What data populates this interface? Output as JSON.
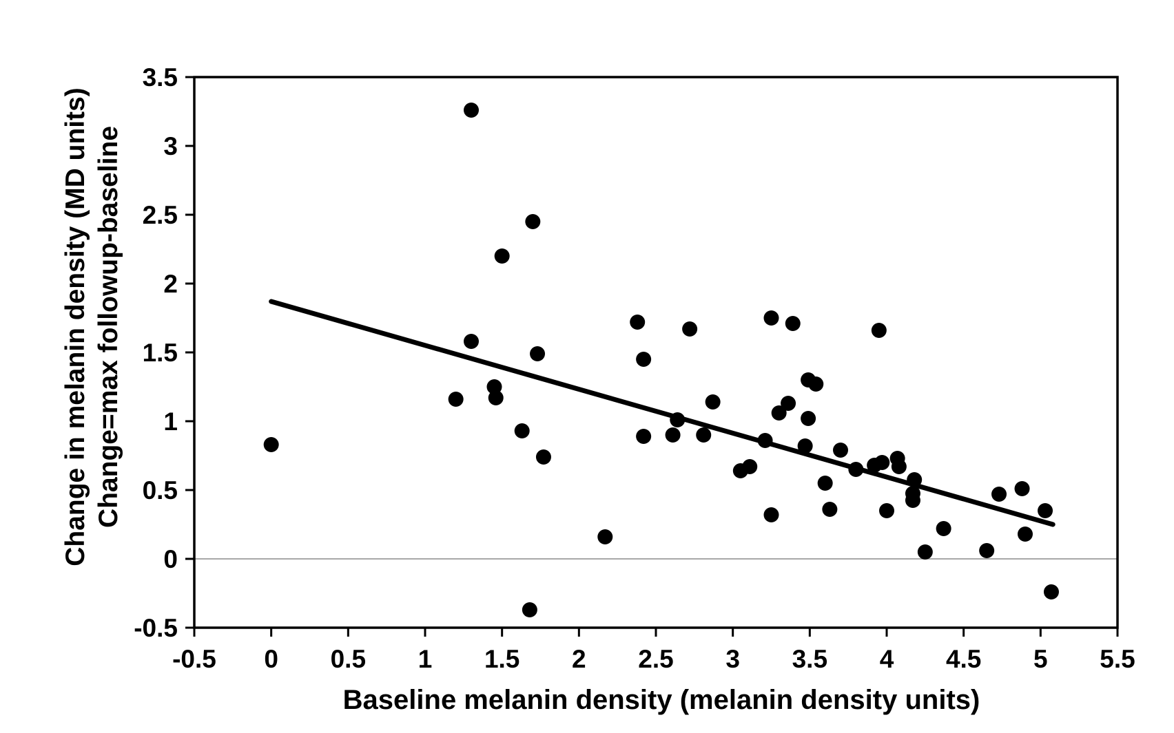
{
  "figure": {
    "background": "#ffffff"
  },
  "chart_data": {
    "type": "scatter",
    "title": "",
    "xlabel": "Baseline melanin density (melanin density units)",
    "ylabel_line1": "Change in melanin density (MD units)",
    "ylabel_line2": "Change=max followup-baseline",
    "xlim": [
      -0.5,
      5.5
    ],
    "ylim": [
      -0.5,
      3.5
    ],
    "xticks": [
      -0.5,
      0,
      0.5,
      1,
      1.5,
      2,
      2.5,
      3,
      3.5,
      4,
      4.5,
      5,
      5.5
    ],
    "xtick_labels": [
      "-0.5",
      "0",
      "0.5",
      "1",
      "1.5",
      "2",
      "2.5",
      "3",
      "3.5",
      "4",
      "4.5",
      "5",
      "5.5"
    ],
    "yticks": [
      -0.5,
      0,
      0.5,
      1,
      1.5,
      2,
      2.5,
      3,
      3.5
    ],
    "ytick_labels": [
      "-0.5",
      "0",
      "0.5",
      "1",
      "1.5",
      "2",
      "2.5",
      "3",
      "3.5"
    ],
    "grid": "off",
    "legend": "none",
    "marker": "filled-circle",
    "marker_radius_px": 11,
    "points": [
      [
        0.0,
        0.83
      ],
      [
        1.2,
        1.16
      ],
      [
        1.3,
        3.26
      ],
      [
        1.3,
        1.58
      ],
      [
        1.45,
        1.25
      ],
      [
        1.46,
        1.17
      ],
      [
        1.5,
        2.2
      ],
      [
        1.63,
        0.93
      ],
      [
        1.68,
        -0.37
      ],
      [
        1.7,
        2.45
      ],
      [
        1.73,
        1.49
      ],
      [
        1.77,
        0.74
      ],
      [
        2.17,
        0.16
      ],
      [
        2.38,
        1.72
      ],
      [
        2.42,
        1.45
      ],
      [
        2.42,
        0.89
      ],
      [
        2.61,
        0.9
      ],
      [
        2.64,
        1.01
      ],
      [
        2.72,
        1.67
      ],
      [
        2.81,
        0.9
      ],
      [
        2.87,
        1.14
      ],
      [
        3.05,
        0.64
      ],
      [
        3.11,
        0.67
      ],
      [
        3.21,
        0.86
      ],
      [
        3.25,
        1.75
      ],
      [
        3.25,
        0.32
      ],
      [
        3.3,
        1.06
      ],
      [
        3.36,
        1.13
      ],
      [
        3.39,
        1.71
      ],
      [
        3.47,
        0.82
      ],
      [
        3.49,
        1.3
      ],
      [
        3.49,
        1.02
      ],
      [
        3.54,
        1.27
      ],
      [
        3.6,
        0.55
      ],
      [
        3.63,
        0.36
      ],
      [
        3.7,
        0.79
      ],
      [
        3.8,
        0.65
      ],
      [
        3.92,
        0.68
      ],
      [
        3.97,
        0.7
      ],
      [
        3.95,
        1.66
      ],
      [
        4.0,
        0.35
      ],
      [
        4.07,
        0.73
      ],
      [
        4.08,
        0.67
      ],
      [
        4.17,
        0.475
      ],
      [
        4.17,
        0.425
      ],
      [
        4.18,
        0.575
      ],
      [
        4.25,
        0.05
      ],
      [
        4.37,
        0.22
      ],
      [
        4.65,
        0.06
      ],
      [
        4.73,
        0.47
      ],
      [
        4.88,
        0.51
      ],
      [
        4.9,
        0.18
      ],
      [
        5.03,
        0.35
      ],
      [
        5.07,
        -0.24
      ]
    ],
    "trendline": {
      "x1": 0.0,
      "y1": 1.87,
      "x2": 5.08,
      "y2": 0.25
    },
    "zero_line_y": 0,
    "colors": {
      "point": "#000000",
      "trend_line": "#000000",
      "axis": "#000000",
      "zero_line": "#8c8c8c",
      "background": "#ffffff"
    }
  }
}
